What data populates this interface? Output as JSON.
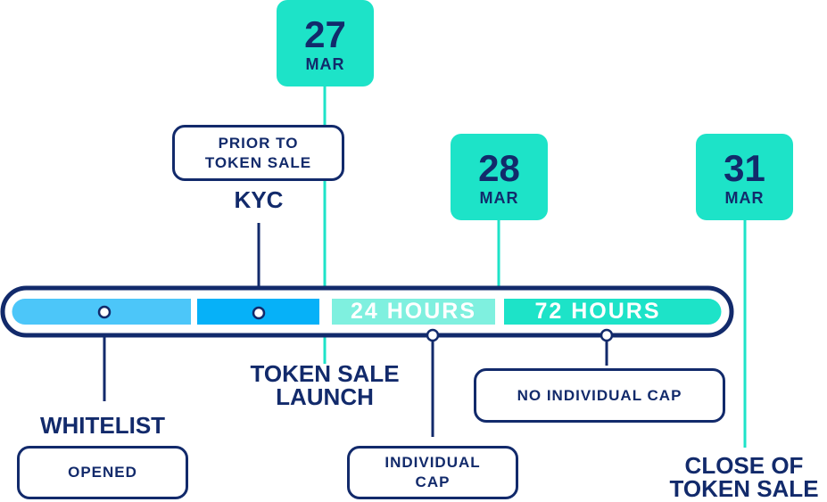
{
  "colors": {
    "navy": "#122a6b",
    "mint": "#1de3c8",
    "mint_light": "#7ff0df",
    "sky": "#4cc6f9",
    "blue": "#06b1f8"
  },
  "dates": {
    "launch": {
      "day": "27",
      "month": "MAR"
    },
    "individual_end": {
      "day": "28",
      "month": "MAR"
    },
    "close": {
      "day": "31",
      "month": "MAR"
    }
  },
  "boxes": {
    "prior_to_token_sale": "PRIOR TO TOKEN SALE",
    "opened": "OPENED",
    "individual_cap": "INDIVIDUAL CAP",
    "no_individual_cap": "NO INDIVIDUAL CAP"
  },
  "labels": {
    "kyc": "KYC",
    "whitelist": "WHITELIST",
    "token_sale_launch": "TOKEN SALE LAUNCH",
    "close_of_token_sale": "CLOSE OF TOKEN SALE"
  },
  "bar": {
    "segment_24": "24 HOURS",
    "segment_72": "72 HOURS"
  }
}
